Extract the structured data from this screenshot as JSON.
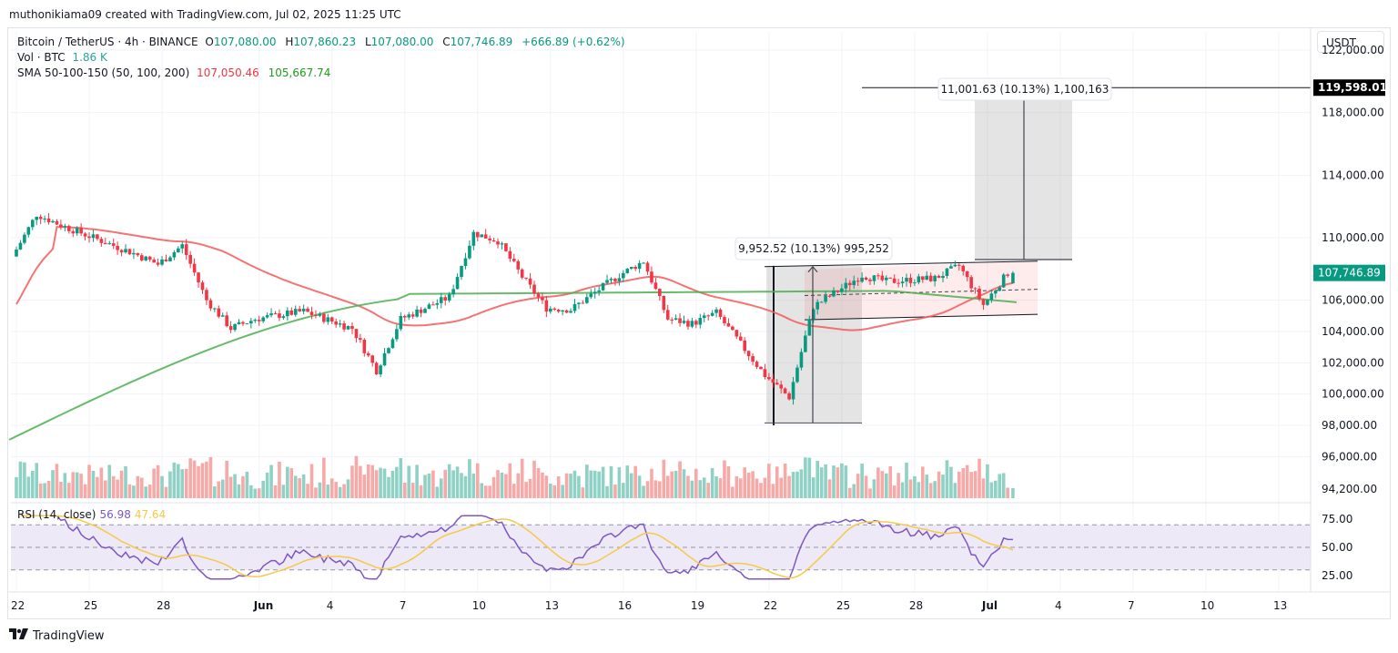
{
  "attribution": "muthonikiama09 created with TradingView.com, Jul 02, 2025 11:25 UTC",
  "legend": {
    "symbol": "Bitcoin / TetherUS · 4h · BINANCE",
    "open_label": "O",
    "open": "107,080.00",
    "high_label": "H",
    "high": "107,860.23",
    "low_label": "L",
    "low": "107,080.00",
    "close_label": "C",
    "close": "107,746.89",
    "change": "+666.89 (+0.62%)",
    "vol_label": "Vol · BTC",
    "vol": "1.86 K",
    "sma_label": "SMA 50-100-150 (50, 100, 200)",
    "sma_red": "107,050.46",
    "sma_green": "105,667.74"
  },
  "rsi_legend": {
    "label": "RSI (14, close)",
    "rsi": "56.98",
    "ma": "47.64"
  },
  "currency_button": "USDT",
  "footer": {
    "logo_mark": "TV",
    "logo_text": "TradingView"
  },
  "colors": {
    "up": "#089981",
    "down": "#f23645",
    "up_vol": "#8fd1c4",
    "down_vol": "#f7a9a7",
    "sma_red": "#f35a5a",
    "sma_green": "#4caf50",
    "rsi": "#7e57c2",
    "rsi_ma": "#f7c948",
    "rsi_band": "#ede9f7",
    "last_price_bg": "#089981"
  },
  "price_axis": {
    "ticks": [
      "122,000.00",
      "118,000.00",
      "114,000.00",
      "110,000.00",
      "106,000.00",
      "104,000.00",
      "102,000.00",
      "100,000.00",
      "98,000.00",
      "96,000.00",
      "94,200.00"
    ],
    "last_price": "107,746.89",
    "target_price": "119,598.01"
  },
  "rsi_axis": {
    "ticks": [
      "75.00",
      "50.00",
      "25.00"
    ]
  },
  "time_axis": {
    "ticks": [
      "22",
      "25",
      "28",
      "Jun",
      "4",
      "7",
      "10",
      "13",
      "16",
      "19",
      "22",
      "25",
      "28",
      "Jul",
      "4",
      "7",
      "10",
      "13"
    ]
  },
  "annotations": {
    "measure_1": "9,952.52 (10.13%) 995,252",
    "measure_2": "11,001.63 (10.13%) 1,100,163"
  },
  "chart_data": {
    "type": "candlestick",
    "title": "Bitcoin / TetherUS · 4h · BINANCE",
    "xlabel": "",
    "ylabel": "USDT",
    "ylim": [
      94200,
      123000
    ],
    "x_range": [
      "May 22, 2025",
      "Jul 14, 2025"
    ],
    "last_close": 107746.89,
    "ohlc_last": {
      "open": 107080.0,
      "high": 107860.23,
      "low": 107080.0,
      "close": 107746.89
    },
    "sma_50": 107050.46,
    "sma_200": 105667.74,
    "rsi_14": 56.98,
    "rsi_ma": 47.64,
    "key_levels": {
      "flag_top": 108500,
      "flag_bottom": 105100,
      "pole_low": 98200,
      "pole_high": 108200,
      "target": 119598.01
    },
    "measures": [
      {
        "label": "9,952.52 (10.13%) 995,252",
        "from": 98200,
        "to": 108150
      },
      {
        "label": "11,001.63 (10.13%) 1,100,163",
        "from": 108600,
        "to": 119598.01
      }
    ],
    "close_path_approx": [
      [
        "May 22",
        108800
      ],
      [
        "May 23",
        111500
      ],
      [
        "May 24",
        110800
      ],
      [
        "May 26",
        109600
      ],
      [
        "May 27",
        109000
      ],
      [
        "May 28",
        108300
      ],
      [
        "May 29",
        109500
      ],
      [
        "May 30",
        106000
      ],
      [
        "May 31",
        104200
      ],
      [
        "Jun 1",
        104800
      ],
      [
        "Jun 3",
        105300
      ],
      [
        "Jun 5",
        104200
      ],
      [
        "Jun 6",
        101500
      ],
      [
        "Jun 7",
        104800
      ],
      [
        "Jun 9",
        106200
      ],
      [
        "Jun 10",
        110300
      ],
      [
        "Jun 11",
        109800
      ],
      [
        "Jun 12",
        107500
      ],
      [
        "Jun 13",
        105500
      ],
      [
        "Jun 14",
        105400
      ],
      [
        "Jun 16",
        107600
      ],
      [
        "Jun 17",
        108500
      ],
      [
        "Jun 18",
        104800
      ],
      [
        "Jun 19",
        104500
      ],
      [
        "Jun 20",
        105200
      ],
      [
        "Jun 21",
        103200
      ],
      [
        "Jun 22",
        101200
      ],
      [
        "Jun 23",
        99800
      ],
      [
        "Jun 24",
        105600
      ],
      [
        "Jun 25",
        106600
      ],
      [
        "Jun 26",
        107600
      ],
      [
        "Jun 27",
        107200
      ],
      [
        "Jun 28",
        107300
      ],
      [
        "Jun 29",
        107400
      ],
      [
        "Jun 30",
        108200
      ],
      [
        "Jul 1",
        105700
      ],
      [
        "Jul 2",
        107746.89
      ]
    ]
  }
}
